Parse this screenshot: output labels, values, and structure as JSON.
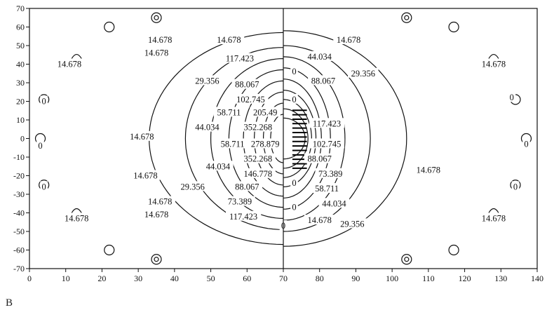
{
  "panel_label": "B",
  "chart_data": {
    "type": "contour",
    "title": "",
    "xlabel": "",
    "ylabel": "",
    "xlim": [
      0,
      140
    ],
    "ylim": [
      -70,
      70
    ],
    "x_ticks": [
      0,
      10,
      20,
      30,
      40,
      50,
      60,
      70,
      80,
      90,
      100,
      110,
      120,
      130,
      140
    ],
    "y_ticks": [
      70,
      60,
      50,
      40,
      30,
      20,
      10,
      0,
      -10,
      -20,
      -30,
      -40,
      -50,
      -60,
      -70
    ],
    "grid": false,
    "divider_x": 70,
    "contour_levels": [
      "0",
      "14.678",
      "29.356",
      "44.034",
      "58.711",
      "73.389",
      "88.067",
      "102.745",
      "117.423",
      "146.778",
      "205.49",
      "278.879",
      "352.268"
    ],
    "contour_labels": [
      {
        "text": "14.678",
        "x": 36,
        "y": 53
      },
      {
        "text": "14.678",
        "x": 55,
        "y": 53
      },
      {
        "text": "14.678",
        "x": 35,
        "y": 46
      },
      {
        "text": "117.423",
        "x": 58,
        "y": 43
      },
      {
        "text": "14.678",
        "x": 11,
        "y": 40
      },
      {
        "text": "29.356",
        "x": 49,
        "y": 31
      },
      {
        "text": "88.067",
        "x": 60,
        "y": 29
      },
      {
        "text": "102.745",
        "x": 61,
        "y": 21
      },
      {
        "text": "58.711",
        "x": 55,
        "y": 14
      },
      {
        "text": "205.49",
        "x": 65,
        "y": 14
      },
      {
        "text": "44.034",
        "x": 49,
        "y": 6
      },
      {
        "text": "352.268",
        "x": 63,
        "y": 6
      },
      {
        "text": "14.678",
        "x": 31,
        "y": 1
      },
      {
        "text": "58.711",
        "x": 56,
        "y": -3
      },
      {
        "text": "278.879",
        "x": 65,
        "y": -3
      },
      {
        "text": "44.034",
        "x": 52,
        "y": -15
      },
      {
        "text": "352.268",
        "x": 63,
        "y": -11
      },
      {
        "text": "146.778",
        "x": 63,
        "y": -19
      },
      {
        "text": "14.678",
        "x": 32,
        "y": -20
      },
      {
        "text": "29.356",
        "x": 45,
        "y": -26
      },
      {
        "text": "88.067",
        "x": 60,
        "y": -26
      },
      {
        "text": "14.678",
        "x": 36,
        "y": -34
      },
      {
        "text": "73.389",
        "x": 58,
        "y": -34
      },
      {
        "text": "14.678",
        "x": 35,
        "y": -41
      },
      {
        "text": "117.423",
        "x": 59,
        "y": -42
      },
      {
        "text": "14.678",
        "x": 13,
        "y": -43
      },
      {
        "text": "14.678",
        "x": 88,
        "y": 53
      },
      {
        "text": "44.034",
        "x": 80,
        "y": 44
      },
      {
        "text": "88.067",
        "x": 81,
        "y": 31
      },
      {
        "text": "29.356",
        "x": 92,
        "y": 35
      },
      {
        "text": "14.678",
        "x": 128,
        "y": 40
      },
      {
        "text": "117.423",
        "x": 82,
        "y": 8
      },
      {
        "text": "102.745",
        "x": 82,
        "y": -3
      },
      {
        "text": "88.067",
        "x": 80,
        "y": -11
      },
      {
        "text": "14.678",
        "x": 110,
        "y": -17
      },
      {
        "text": "73.389",
        "x": 83,
        "y": -19
      },
      {
        "text": "58.711",
        "x": 82,
        "y": -27
      },
      {
        "text": "44.034",
        "x": 84,
        "y": -35
      },
      {
        "text": "14.678",
        "x": 80,
        "y": -44
      },
      {
        "text": "29.356",
        "x": 89,
        "y": -46
      },
      {
        "text": "14.678",
        "x": 128,
        "y": -43
      },
      {
        "text": "0",
        "x": 4,
        "y": 20
      },
      {
        "text": "0",
        "x": 3,
        "y": -4
      },
      {
        "text": "0",
        "x": 4,
        "y": -26
      },
      {
        "text": "0",
        "x": 73,
        "y": 36
      },
      {
        "text": "0",
        "x": 73,
        "y": 21
      },
      {
        "text": "0",
        "x": 73,
        "y": -24
      },
      {
        "text": "0",
        "x": 73,
        "y": -37
      },
      {
        "text": "0",
        "x": 70,
        "y": -47
      },
      {
        "text": "0",
        "x": 133,
        "y": 22
      },
      {
        "text": "0",
        "x": 137,
        "y": -3
      },
      {
        "text": "0",
        "x": 134,
        "y": -26
      }
    ]
  }
}
